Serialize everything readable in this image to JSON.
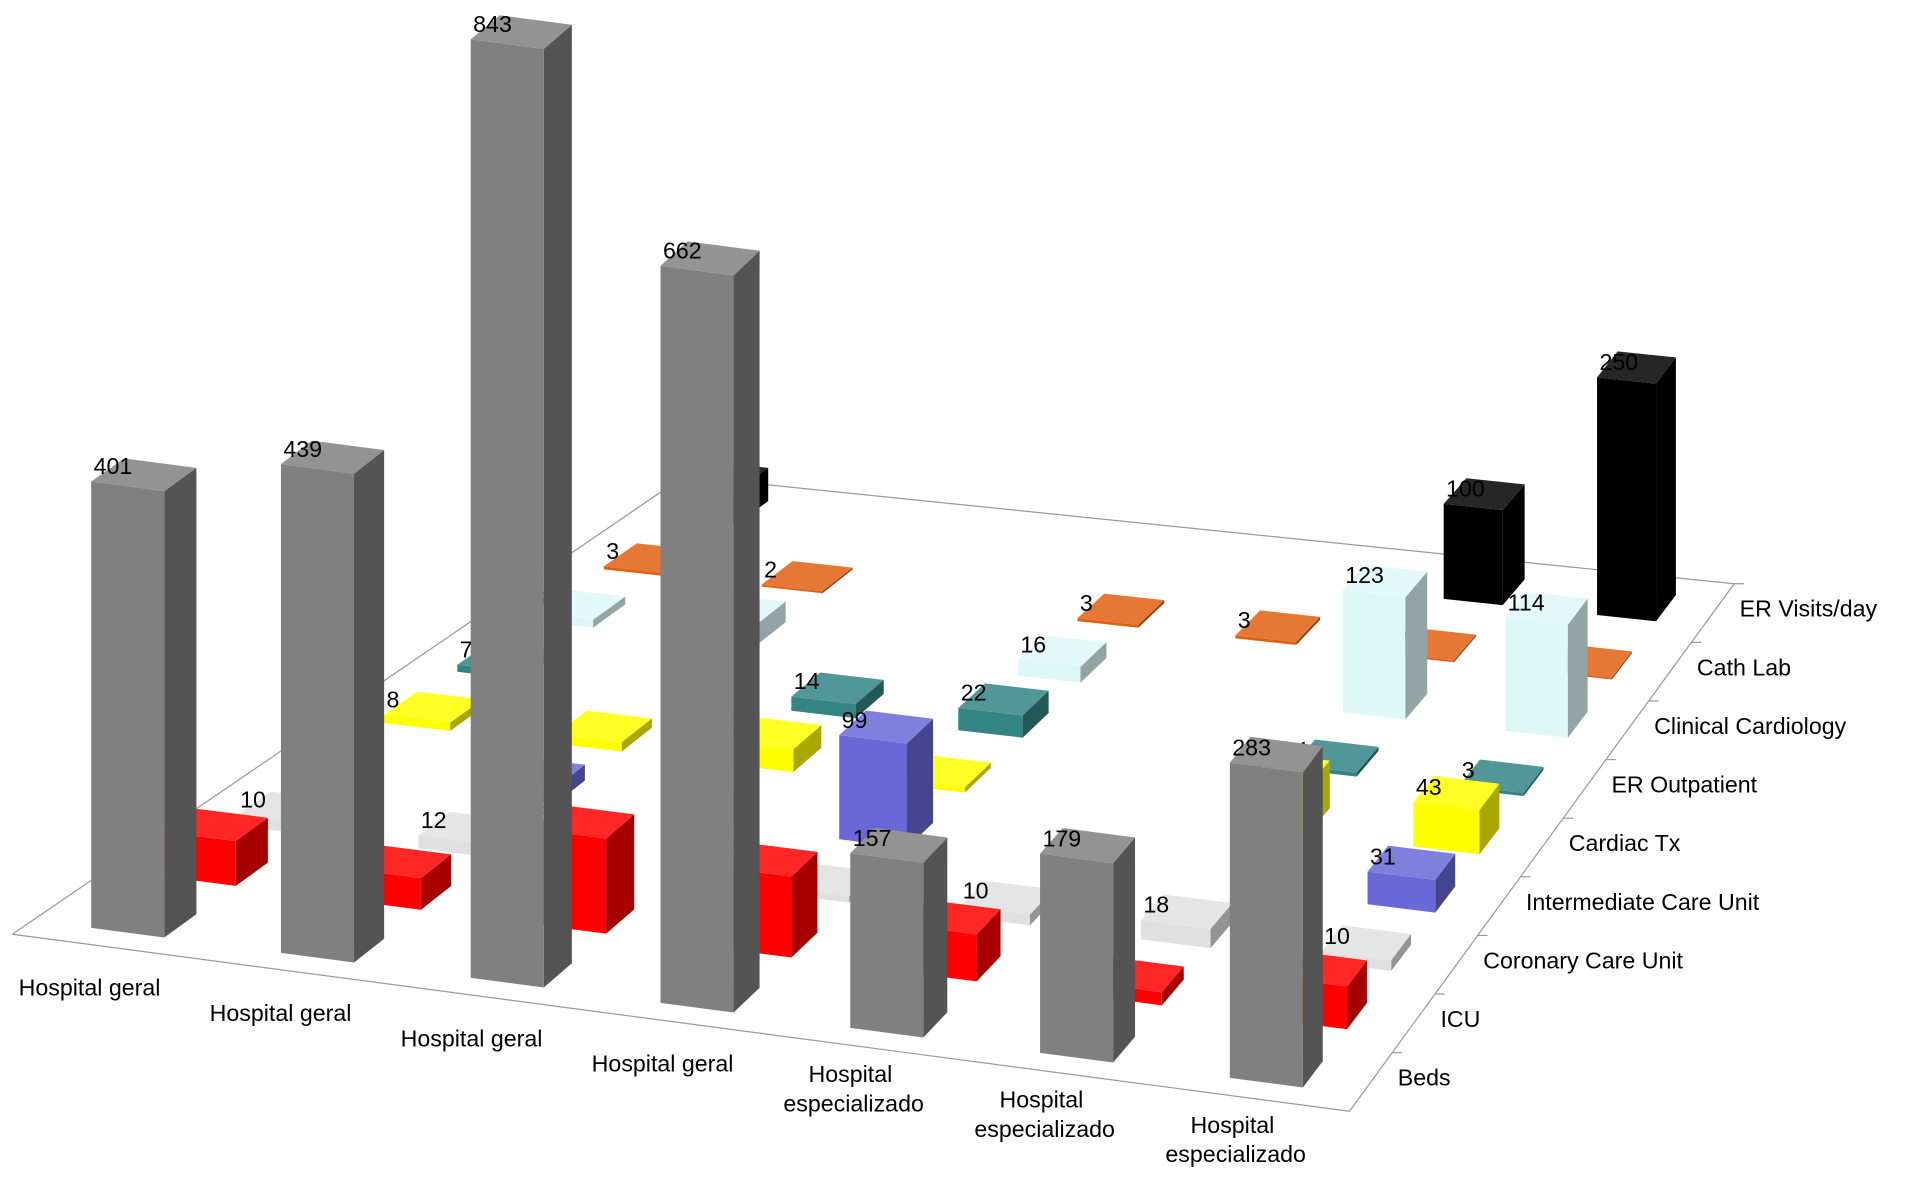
{
  "chart_data": {
    "type": "bar3d",
    "categories": [
      "Hospital geral",
      "Hospital geral",
      "Hospital geral",
      "Hospital geral",
      "Hospital especializado",
      "Hospital especializado",
      "Hospital especializado"
    ],
    "series": [
      {
        "name": "Beds",
        "color": "#808080",
        "values": [
          401,
          439,
          843,
          662,
          157,
          179,
          283
        ]
      },
      {
        "name": "ICU",
        "color": "#ff0000",
        "values": [
          41,
          29,
          87,
          74,
          43,
          12,
          39
        ]
      },
      {
        "name": "Coronary Care Unit",
        "color": "#e0e0e0",
        "values": [
          10,
          12,
          null,
          6,
          10,
          18,
          10
        ]
      },
      {
        "name": "Intermediate Care Unit",
        "color": "#6868d8",
        "values": [
          null,
          15,
          5,
          99,
          null,
          null,
          31
        ]
      },
      {
        "name": "Cardiac Tx",
        "color": "#ffff00",
        "values": [
          8,
          9,
          22,
          5,
          null,
          46,
          43
        ]
      },
      {
        "name": "ER Outpatient",
        "color": "#338585",
        "values": [
          7,
          null,
          14,
          22,
          null,
          4,
          3
        ]
      },
      {
        "name": "Clinical Cardiology",
        "color": "#def8f8",
        "values": [
          8,
          21,
          null,
          16,
          null,
          123,
          114
        ]
      },
      {
        "name": "Cath Lab",
        "color": "#e06010",
        "values": [
          3,
          2,
          null,
          3,
          3,
          2,
          2
        ]
      },
      {
        "name": "ER Visits/day",
        "color": "#000000",
        "values": [
          35,
          null,
          null,
          null,
          null,
          100,
          250
        ]
      }
    ]
  }
}
